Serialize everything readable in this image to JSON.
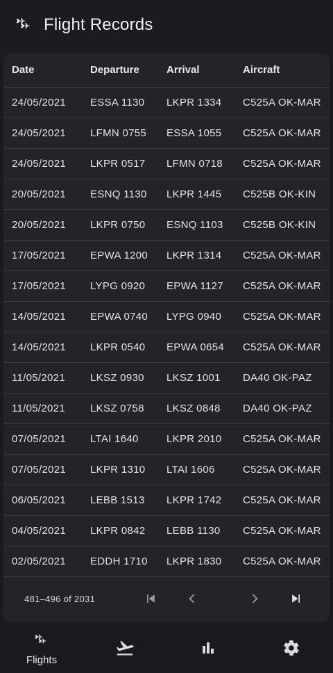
{
  "app": {
    "title": "Flight Records",
    "logo_icon": "airplanes-icon"
  },
  "table": {
    "columns": [
      "Date",
      "Departure",
      "Arrival",
      "Aircraft"
    ],
    "rows": [
      [
        "24/05/2021",
        "ESSA 1130",
        "LKPR 1334",
        "C525A OK-MAR"
      ],
      [
        "24/05/2021",
        "LFMN 0755",
        "ESSA 1055",
        "C525A OK-MAR"
      ],
      [
        "24/05/2021",
        "LKPR 0517",
        "LFMN 0718",
        "C525A OK-MAR"
      ],
      [
        "20/05/2021",
        "ESNQ 1130",
        "LKPR 1445",
        "C525B OK-KIN"
      ],
      [
        "20/05/2021",
        "LKPR 0750",
        "ESNQ 1103",
        "C525B OK-KIN"
      ],
      [
        "17/05/2021",
        "EPWA 1200",
        "LKPR 1314",
        "C525A OK-MAR"
      ],
      [
        "17/05/2021",
        "LYPG 0920",
        "EPWA 1127",
        "C525A OK-MAR"
      ],
      [
        "14/05/2021",
        "EPWA 0740",
        "LYPG 0940",
        "C525A OK-MAR"
      ],
      [
        "14/05/2021",
        "LKPR 0540",
        "EPWA 0654",
        "C525A OK-MAR"
      ],
      [
        "11/05/2021",
        "LKSZ 0930",
        "LKSZ 1001",
        "DA40 OK-PAZ"
      ],
      [
        "11/05/2021",
        "LKSZ 0758",
        "LKSZ 0848",
        "DA40 OK-PAZ"
      ],
      [
        "07/05/2021",
        "LTAI 1640",
        "LKPR 2010",
        "C525A OK-MAR"
      ],
      [
        "07/05/2021",
        "LKPR 1310",
        "LTAI 1606",
        "C525A OK-MAR"
      ],
      [
        "06/05/2021",
        "LEBB 1513",
        "LKPR 1742",
        "C525A OK-MAR"
      ],
      [
        "04/05/2021",
        "LKPR 0842",
        "LEBB 1130",
        "C525A OK-MAR"
      ],
      [
        "02/05/2021",
        "EDDH 1710",
        "LKPR 1830",
        "C525A OK-MAR"
      ]
    ]
  },
  "pagination": {
    "range_text": "481–496 of 2031",
    "first_icon": "first-page-icon",
    "prev_icon": "chevron-left-icon",
    "next_icon": "chevron-right-icon",
    "last_icon": "last-page-icon"
  },
  "bottom_nav": {
    "items": [
      {
        "label": "Flights",
        "icon": "airplanes-icon",
        "active": true
      },
      {
        "label": "",
        "icon": "flight-takeoff-icon",
        "active": false
      },
      {
        "label": "",
        "icon": "bar-chart-icon",
        "active": false
      },
      {
        "label": "",
        "icon": "gear-icon",
        "active": false
      }
    ]
  },
  "colors": {
    "background": "#1c1c20",
    "card": "#242428",
    "divider": "#3a3a40",
    "text": "#e6e6ea"
  }
}
